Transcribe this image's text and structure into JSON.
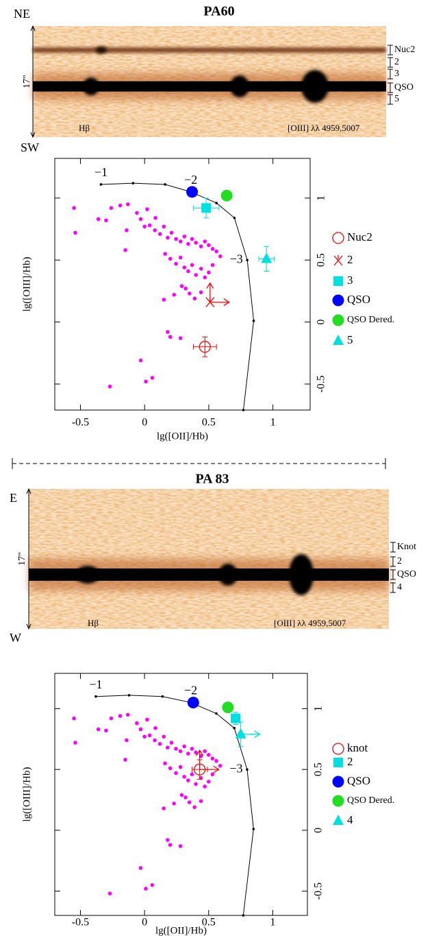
{
  "chart_data": [
    {
      "type": "scatter",
      "title": "PA60",
      "spectrum": {
        "top_label": "NE",
        "bottom_label": "SW",
        "height_label": "17\"",
        "line_labels": [
          "Hβ",
          "[OIII] λλ 4959,5007"
        ],
        "regions": [
          "Nuc2",
          "2",
          "3",
          "QSO",
          "5"
        ]
      },
      "xlabel": "lg([OII]/Hb)",
      "ylabel": "lg([OIII]/Hb)",
      "xlim": [
        -0.7,
        1.29
      ],
      "ylim": [
        -0.71,
        1.32
      ],
      "xticks": [
        -0.5,
        0,
        0.5,
        1
      ],
      "yticks": [
        -0.5,
        0,
        0.5,
        1
      ],
      "model": {
        "color": "#000000",
        "x": [
          -0.34,
          -0.09,
          0.16,
          0.36,
          0.56,
          0.7,
          0.8,
          0.85,
          0.77
        ],
        "values": [
          1.11,
          1.12,
          1.11,
          1.05,
          0.96,
          0.84,
          0.5,
          0.01,
          -0.71
        ],
        "point_labels": [
          "−1",
          null,
          null,
          "−2",
          null,
          null,
          "−3",
          null,
          null
        ]
      },
      "series": [
        {
          "color": "#ff00ff",
          "marker": "dot",
          "x": [
            -0.55,
            -0.54,
            -0.36,
            -0.3,
            -0.19,
            -0.13,
            -0.14,
            -0.15,
            -0.06,
            -0.03,
            0,
            0.04,
            0.08,
            0.12,
            0.15,
            0.18,
            0.21,
            0.245,
            0.28,
            0.31,
            0.34,
            0.37,
            0.4,
            0.44,
            0.47,
            0.5,
            0.53,
            0.56,
            0.59,
            0.16,
            0.2,
            0.245,
            0.28,
            0.31,
            0.34,
            0.37,
            0.4,
            0.44,
            0.47,
            0.5,
            0.53,
            0.32,
            0.35,
            0.39,
            0.44,
            0.29,
            0.15,
            0.23,
            0.085,
            0.02,
            -0.26,
            0.18,
            0.2,
            0.28,
            -0.03,
            0.06,
            0.01,
            -0.27
          ],
          "values": [
            0.92,
            0.72,
            0.83,
            0.82,
            0.94,
            0.95,
            0.74,
            0.58,
            0.88,
            0.83,
            0.77,
            0.78,
            0.74,
            0.71,
            0.77,
            0.68,
            0.72,
            0.67,
            0.65,
            0.69,
            0.63,
            0.67,
            0.64,
            0.61,
            0.65,
            0.62,
            0.59,
            0.57,
            0.53,
            0.55,
            0.51,
            0.47,
            0.52,
            0.44,
            0.41,
            0.46,
            0.38,
            0.43,
            0.36,
            0.4,
            0.46,
            0.27,
            0.23,
            0.19,
            0.24,
            0.29,
            0.18,
            0.22,
            0.84,
            0.91,
            0.92,
            -0.08,
            -0.12,
            -0.13,
            -0.31,
            -0.45,
            -0.48,
            -0.52
          ]
        },
        {
          "name": "Nuc2",
          "color": "#ff0000",
          "marker": "open-circle",
          "x": [
            0.47
          ],
          "values": [
            -0.2
          ],
          "xerr": [
            0.09
          ],
          "yerr": [
            0.08
          ]
        },
        {
          "name": "2",
          "color": "#ff0000",
          "marker": "star",
          "x": [
            0.51
          ],
          "values": [
            0.16
          ],
          "limits": [
            "right",
            "up"
          ]
        },
        {
          "name": "3",
          "color": "#00e0e0",
          "marker": "square",
          "x": [
            0.48
          ],
          "values": [
            0.92
          ],
          "xerr": [
            0.1
          ],
          "yerr": [
            0.08
          ]
        },
        {
          "name": "QSO",
          "color": "#0000ff",
          "marker": "circle",
          "x": [
            0.37
          ],
          "values": [
            1.05
          ]
        },
        {
          "name": "QSO Dered.",
          "color": "#22dd22",
          "marker": "circle",
          "x": [
            0.64
          ],
          "values": [
            1.02
          ]
        },
        {
          "name": "5",
          "color": "#00e0e0",
          "marker": "triangle",
          "x": [
            0.95
          ],
          "values": [
            0.51
          ],
          "xerr": [
            0.06
          ],
          "yerr": [
            0.1
          ]
        }
      ]
    },
    {
      "type": "scatter",
      "title": "PA 83",
      "spectrum": {
        "top_label": "E",
        "bottom_label": "W",
        "height_label": "17\"",
        "line_labels": [
          "Hβ",
          "[OIII] λλ 4959,5007"
        ],
        "regions": [
          "Knot",
          "2",
          "QSO",
          "4"
        ]
      },
      "xlabel": "lg([OII]/Hb)",
      "ylabel": "lg([OIII]/Hb)",
      "xlim": [
        -0.7,
        1.27
      ],
      "ylim": [
        -0.7,
        1.29
      ],
      "xticks": [
        -0.5,
        0,
        0.5,
        1
      ],
      "yticks": [
        -0.5,
        0,
        0.5,
        1
      ],
      "model": {
        "color": "#000000",
        "x": [
          -0.38,
          -0.12,
          0.14,
          0.36,
          0.56,
          0.7,
          0.8,
          0.85,
          0.77
        ],
        "values": [
          1.1,
          1.11,
          1.1,
          1.05,
          0.96,
          0.84,
          0.5,
          0.01,
          -0.7
        ],
        "point_labels": [
          "−1",
          null,
          null,
          "−2",
          null,
          null,
          "−3",
          null,
          null
        ]
      },
      "series": [
        {
          "color": "#ff00ff",
          "marker": "dot",
          "x": [
            -0.55,
            -0.54,
            -0.36,
            -0.3,
            -0.19,
            -0.13,
            -0.14,
            -0.15,
            -0.06,
            -0.03,
            0,
            0.04,
            0.08,
            0.12,
            0.15,
            0.18,
            0.21,
            0.245,
            0.28,
            0.31,
            0.34,
            0.37,
            0.4,
            0.44,
            0.47,
            0.5,
            0.53,
            0.56,
            0.59,
            0.16,
            0.2,
            0.245,
            0.28,
            0.31,
            0.34,
            0.37,
            0.4,
            0.44,
            0.47,
            0.5,
            0.53,
            0.32,
            0.35,
            0.39,
            0.44,
            0.29,
            0.15,
            0.23,
            0.085,
            0.02,
            -0.26,
            0.18,
            0.2,
            0.28,
            -0.03,
            0.06,
            0.01,
            -0.27
          ],
          "values": [
            0.92,
            0.72,
            0.83,
            0.82,
            0.94,
            0.95,
            0.74,
            0.58,
            0.88,
            0.83,
            0.77,
            0.78,
            0.74,
            0.71,
            0.77,
            0.68,
            0.72,
            0.67,
            0.65,
            0.69,
            0.63,
            0.67,
            0.64,
            0.61,
            0.65,
            0.62,
            0.59,
            0.57,
            0.53,
            0.55,
            0.51,
            0.47,
            0.52,
            0.44,
            0.41,
            0.46,
            0.38,
            0.43,
            0.36,
            0.4,
            0.46,
            0.27,
            0.23,
            0.19,
            0.24,
            0.29,
            0.18,
            0.22,
            0.84,
            0.91,
            0.92,
            -0.08,
            -0.12,
            -0.13,
            -0.31,
            -0.45,
            -0.48,
            -0.52
          ]
        },
        {
          "name": "knot",
          "color": "#ff0000",
          "marker": "open-circle",
          "x": [
            0.43
          ],
          "values": [
            0.5
          ],
          "xerr": [
            0.06
          ],
          "yerr": [
            0.08
          ],
          "limits": [
            "right",
            "up"
          ]
        },
        {
          "name": "2",
          "color": "#00e0e0",
          "marker": "square",
          "x": [
            0.71
          ],
          "values": [
            0.92
          ],
          "yerr": [
            0.05
          ]
        },
        {
          "name": "QSO",
          "color": "#0000ff",
          "marker": "circle",
          "x": [
            0.38
          ],
          "values": [
            1.05
          ]
        },
        {
          "name": "QSO Dered.",
          "color": "#22dd22",
          "marker": "circle",
          "x": [
            0.65
          ],
          "values": [
            1.01
          ]
        },
        {
          "name": "4",
          "color": "#00e0e0",
          "marker": "triangle",
          "x": [
            0.75
          ],
          "values": [
            0.79
          ],
          "yerr": [
            0.1
          ],
          "limits": [
            "right"
          ]
        }
      ]
    }
  ]
}
